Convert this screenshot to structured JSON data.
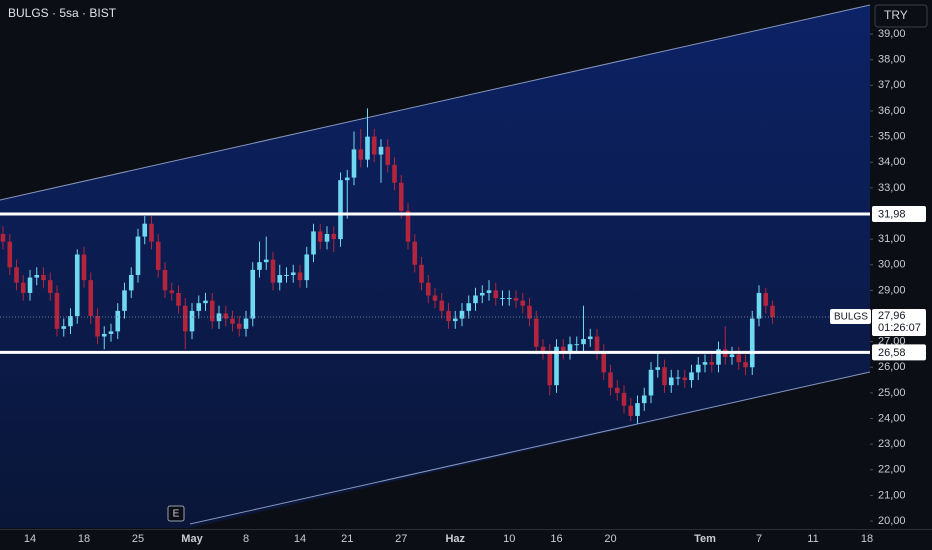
{
  "header": {
    "title": "BULGS · 5sa · BIST",
    "currency": "TRY",
    "event_label": "E"
  },
  "chart_data": {
    "type": "candlestick",
    "up_color": "#6fd9f2",
    "down_color": "#b3243d",
    "categories": [
      null,
      null,
      null,
      null,
      "14",
      null,
      null,
      null,
      null,
      null,
      null,
      null,
      "18",
      null,
      null,
      null,
      null,
      null,
      null,
      null,
      "25",
      null,
      null,
      null,
      null,
      null,
      null,
      null,
      "May",
      null,
      null,
      null,
      null,
      null,
      null,
      null,
      "8",
      null,
      null,
      null,
      null,
      null,
      null,
      null,
      "14",
      null,
      null,
      null,
      null,
      null,
      null,
      "21",
      null,
      null,
      null,
      null,
      null,
      null,
      null,
      "27",
      null,
      null,
      null,
      null,
      null,
      null,
      null,
      "Haz",
      null,
      null,
      null,
      null,
      null,
      null,
      null,
      "10",
      null,
      null,
      null,
      null,
      null,
      null,
      "16",
      null,
      null,
      null,
      null,
      null,
      null,
      null,
      "20",
      null,
      null,
      null,
      null,
      null,
      null,
      null,
      null,
      null,
      null,
      null,
      null,
      null,
      "Tem",
      null,
      null,
      null,
      null,
      null,
      null,
      null,
      "7",
      null,
      null,
      null,
      null,
      null,
      null,
      null,
      "11",
      null,
      null,
      null,
      null,
      null,
      null,
      null,
      "18"
    ],
    "open": [
      31.2,
      30.9,
      29.9,
      29.3,
      28.9,
      29.5,
      29.6,
      29.4,
      28.9,
      27.5,
      27.6,
      28.0,
      30.4,
      29.4,
      28.0,
      27.2,
      27.3,
      27.4,
      28.2,
      29.0,
      29.6,
      31.1,
      31.6,
      30.9,
      29.8,
      29.0,
      28.9,
      28.4,
      27.4,
      28.2,
      28.5,
      28.6,
      27.8,
      28.1,
      27.9,
      27.7,
      27.5,
      27.9,
      29.8,
      30.1,
      30.2,
      29.3,
      29.6,
      29.6,
      29.7,
      29.4,
      30.4,
      31.3,
      30.9,
      31.2,
      31.0,
      33.3,
      33.4,
      34.5,
      34.1,
      35.0,
      34.3,
      34.6,
      33.9,
      33.2,
      32.1,
      30.9,
      30.0,
      29.3,
      28.8,
      28.6,
      28.2,
      27.8,
      27.9,
      28.2,
      28.5,
      28.8,
      28.9,
      29.0,
      28.7,
      28.7,
      28.7,
      28.6,
      28.4,
      27.9,
      26.8,
      26.6,
      25.3,
      26.8,
      26.6,
      26.9,
      26.9,
      27.1,
      27.2,
      26.6,
      25.8,
      25.2,
      25.0,
      24.5,
      24.1,
      24.6,
      24.9,
      25.9,
      26.0,
      25.3,
      25.6,
      25.6,
      25.5,
      25.8,
      26.1,
      26.2,
      26.1,
      26.7,
      26.4,
      26.5,
      26.2,
      26.0,
      27.9,
      28.9,
      28.4,
      null,
      null,
      null,
      null,
      null,
      null,
      null,
      null,
      null,
      null,
      null,
      null,
      null,
      null
    ],
    "high": [
      31.5,
      31.2,
      30.2,
      29.6,
      29.8,
      29.9,
      29.9,
      29.7,
      29.2,
      27.9,
      28.3,
      30.6,
      30.7,
      29.7,
      28.3,
      27.6,
      27.7,
      28.5,
      29.3,
      29.9,
      31.4,
      31.9,
      31.9,
      31.2,
      30.1,
      29.3,
      29.2,
      28.7,
      28.5,
      28.8,
      28.9,
      28.9,
      28.4,
      28.4,
      28.2,
      28.0,
      28.2,
      30.1,
      30.9,
      31.1,
      30.5,
      30.0,
      29.9,
      30.0,
      30.0,
      30.7,
      31.6,
      31.6,
      31.5,
      31.5,
      33.6,
      33.7,
      35.2,
      35.3,
      36.1,
      35.3,
      34.9,
      34.9,
      34.2,
      33.5,
      32.4,
      31.2,
      30.3,
      29.6,
      29.1,
      28.9,
      28.5,
      28.2,
      28.5,
      28.8,
      29.1,
      29.2,
      29.4,
      29.3,
      29.0,
      29.0,
      29.0,
      28.9,
      28.7,
      28.2,
      27.1,
      26.9,
      27.1,
      27.1,
      27.2,
      27.2,
      28.4,
      27.5,
      27.5,
      26.9,
      26.1,
      25.5,
      25.3,
      24.8,
      24.9,
      25.2,
      26.2,
      26.6,
      26.3,
      25.9,
      25.9,
      25.9,
      26.1,
      26.4,
      26.5,
      26.5,
      27.0,
      27.6,
      26.8,
      26.8,
      26.5,
      28.2,
      29.2,
      29.1,
      28.6,
      null,
      null,
      null,
      null,
      null,
      null,
      null,
      null,
      null,
      null,
      null,
      null,
      null,
      null
    ],
    "low": [
      30.6,
      29.6,
      29.0,
      28.6,
      28.6,
      29.2,
      29.1,
      28.6,
      27.2,
      27.2,
      27.3,
      27.7,
      29.1,
      27.7,
      26.9,
      26.7,
      27.0,
      27.1,
      27.9,
      28.7,
      29.3,
      30.8,
      30.6,
      29.5,
      28.7,
      28.6,
      28.1,
      26.7,
      27.1,
      27.9,
      28.2,
      27.5,
      27.5,
      27.6,
      27.4,
      27.2,
      27.2,
      27.6,
      29.5,
      29.8,
      29.0,
      29.0,
      29.3,
      29.3,
      29.1,
      29.1,
      30.1,
      30.6,
      30.6,
      30.5,
      30.7,
      31.8,
      33.1,
      33.8,
      33.8,
      34.0,
      33.2,
      33.6,
      32.9,
      31.8,
      30.6,
      29.7,
      29.0,
      28.5,
      28.3,
      27.9,
      27.5,
      27.5,
      27.6,
      27.9,
      28.2,
      28.5,
      28.6,
      28.4,
      28.4,
      28.4,
      28.3,
      28.1,
      27.6,
      26.5,
      26.3,
      24.9,
      25.0,
      26.3,
      26.3,
      26.6,
      26.6,
      26.8,
      26.3,
      25.5,
      24.9,
      24.7,
      24.2,
      23.9,
      23.8,
      24.3,
      24.6,
      25.6,
      25.0,
      25.0,
      25.3,
      25.2,
      25.2,
      25.5,
      25.8,
      25.8,
      25.8,
      26.1,
      26.1,
      25.9,
      25.7,
      25.7,
      27.6,
      28.1,
      27.7,
      null,
      null,
      null,
      null,
      null,
      null,
      null,
      null,
      null,
      null,
      null,
      null,
      null,
      null
    ],
    "close": [
      30.9,
      29.9,
      29.3,
      28.9,
      29.5,
      29.6,
      29.4,
      28.9,
      27.5,
      27.6,
      28.0,
      30.4,
      29.4,
      28.0,
      27.2,
      27.3,
      27.4,
      28.2,
      29.0,
      29.6,
      31.1,
      31.6,
      30.9,
      29.8,
      29.0,
      28.9,
      28.4,
      27.4,
      28.2,
      28.5,
      28.6,
      27.8,
      28.1,
      27.9,
      27.7,
      27.5,
      27.9,
      29.8,
      30.1,
      30.2,
      29.3,
      29.6,
      29.6,
      29.7,
      29.4,
      30.4,
      31.3,
      30.9,
      31.2,
      31.0,
      33.3,
      33.4,
      34.5,
      34.1,
      35.0,
      34.3,
      34.6,
      33.9,
      33.2,
      32.1,
      30.9,
      30.0,
      29.3,
      28.8,
      28.6,
      28.2,
      27.8,
      27.9,
      28.2,
      28.5,
      28.8,
      28.9,
      29.0,
      28.7,
      28.7,
      28.7,
      28.6,
      28.4,
      27.9,
      26.8,
      26.6,
      25.3,
      26.8,
      26.6,
      26.9,
      26.9,
      27.1,
      27.2,
      26.6,
      25.8,
      25.2,
      25.0,
      24.5,
      24.1,
      24.6,
      24.9,
      25.9,
      26.0,
      25.3,
      25.6,
      25.6,
      25.5,
      25.8,
      26.1,
      26.2,
      26.1,
      26.7,
      26.4,
      26.5,
      26.2,
      26.0,
      27.9,
      28.9,
      28.4,
      27.96,
      null,
      null,
      null,
      null,
      null,
      null,
      null,
      null,
      null,
      null,
      null,
      null,
      null,
      null
    ],
    "ylim": [
      19.65,
      40.33
    ],
    "yticks": [
      {
        "value": 20,
        "label": "20,00"
      },
      {
        "value": 21,
        "label": "21,00"
      },
      {
        "value": 22,
        "label": "22,00"
      },
      {
        "value": 23,
        "label": "23,00"
      },
      {
        "value": 24,
        "label": "24,00"
      },
      {
        "value": 25,
        "label": "25,00"
      },
      {
        "value": 26,
        "label": "26,00"
      },
      {
        "value": 27,
        "label": "27,00"
      },
      {
        "value": 29,
        "label": "29,00"
      },
      {
        "value": 30,
        "label": "30,00"
      },
      {
        "value": 31,
        "label": "31,00"
      },
      {
        "value": 33,
        "label": "33,00"
      },
      {
        "value": 34,
        "label": "34,00"
      },
      {
        "value": 35,
        "label": "35,00"
      },
      {
        "value": 36,
        "label": "36,00"
      },
      {
        "value": 37,
        "label": "37,00"
      },
      {
        "value": 38,
        "label": "38,00"
      },
      {
        "value": 39,
        "label": "39,00"
      }
    ],
    "levels": [
      {
        "value": 31.98,
        "label": "31,98"
      },
      {
        "value": 26.58,
        "label": "26,58"
      }
    ],
    "last_price": {
      "symbol": "BULGS",
      "value": 27.96,
      "label": "27,96",
      "countdown": "01:26:07"
    }
  }
}
